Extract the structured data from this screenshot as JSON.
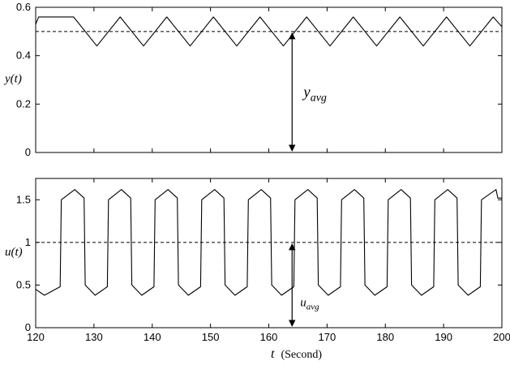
{
  "chart_data": [
    {
      "type": "line",
      "ylabel": "y(t)",
      "xlim": [
        120,
        200
      ],
      "ylim": [
        0,
        0.6
      ],
      "yticks": [
        "0",
        "0.2",
        "0.4",
        "0.6"
      ],
      "xticks": [],
      "reference_line": {
        "value": 0.5,
        "style": "dashed"
      },
      "annotation": {
        "label": "y",
        "subscript": "avg",
        "x": 164,
        "from": 0,
        "to": 0.5
      },
      "signal": {
        "shape": "triangle",
        "min": 0.44,
        "max": 0.56,
        "period": 8,
        "t_first_peak": 126.5
      },
      "series": [
        {
          "x": [
            120,
            120.5,
            126.5,
            130.5,
            134.5,
            138.5,
            142.5,
            146.5,
            150.5,
            154.5,
            158.5,
            162.5,
            166.5,
            170.5,
            174.5,
            178.5,
            182.5,
            186.5,
            190.5,
            194.5,
            198.5,
            200
          ],
          "y": [
            0.53,
            0.56,
            0.56,
            0.44,
            0.56,
            0.44,
            0.56,
            0.44,
            0.56,
            0.44,
            0.56,
            0.44,
            0.56,
            0.44,
            0.56,
            0.44,
            0.56,
            0.44,
            0.56,
            0.44,
            0.56,
            0.52
          ]
        }
      ],
      "grid": false
    },
    {
      "type": "line",
      "ylabel": "u(t)",
      "xlabel_var": "t",
      "xlabel_unit": "(Second)",
      "xlim": [
        120,
        200
      ],
      "ylim": [
        0,
        1.75
      ],
      "yticks": [
        "0",
        "0.5",
        "1",
        "1.5"
      ],
      "xticks": [
        "120",
        "130",
        "140",
        "150",
        "160",
        "170",
        "180",
        "190",
        "200"
      ],
      "reference_line": {
        "value": 1.0,
        "style": "dashed"
      },
      "annotation": {
        "label": "u",
        "subscript": "avg",
        "x": 164,
        "from": 0,
        "to": 1.0
      },
      "signal": {
        "shape": "rounded-square",
        "low": 0.38,
        "high": 1.62,
        "period": 8,
        "t_first_rise": 124.2
      },
      "series": [
        {
          "x": [
            120,
            121.5,
            124.2,
            124.4,
            126.7,
            128.3,
            128.5,
            130.2,
            132.3,
            132.5,
            134.7,
            136.3,
            136.5,
            138.2,
            140.3,
            140.5,
            142.7,
            144.3,
            144.5,
            146.2,
            148.3,
            148.5,
            150.7,
            152.3,
            152.5,
            154.2,
            156.3,
            156.5,
            158.7,
            160.3,
            160.5,
            162.2,
            164.3,
            164.5,
            166.7,
            168.3,
            168.5,
            170.2,
            172.3,
            172.5,
            174.7,
            176.3,
            176.5,
            178.2,
            180.3,
            180.5,
            182.7,
            184.3,
            184.5,
            186.2,
            188.3,
            188.5,
            190.7,
            192.3,
            192.5,
            194.2,
            196.3,
            196.5,
            199.0,
            199.3,
            200
          ],
          "y": [
            0.45,
            0.38,
            0.48,
            1.5,
            1.62,
            1.52,
            0.5,
            0.38,
            0.48,
            1.5,
            1.62,
            1.52,
            0.5,
            0.38,
            0.48,
            1.5,
            1.62,
            1.52,
            0.5,
            0.38,
            0.48,
            1.5,
            1.62,
            1.52,
            0.5,
            0.38,
            0.48,
            1.5,
            1.62,
            1.52,
            0.5,
            0.38,
            0.48,
            1.5,
            1.62,
            1.52,
            0.5,
            0.38,
            0.48,
            1.5,
            1.62,
            1.52,
            0.5,
            0.38,
            0.48,
            1.5,
            1.62,
            1.52,
            0.5,
            0.38,
            0.48,
            1.5,
            1.62,
            1.52,
            0.5,
            0.38,
            0.48,
            1.5,
            1.62,
            1.52,
            1.52
          ]
        }
      ],
      "grid": false
    }
  ]
}
